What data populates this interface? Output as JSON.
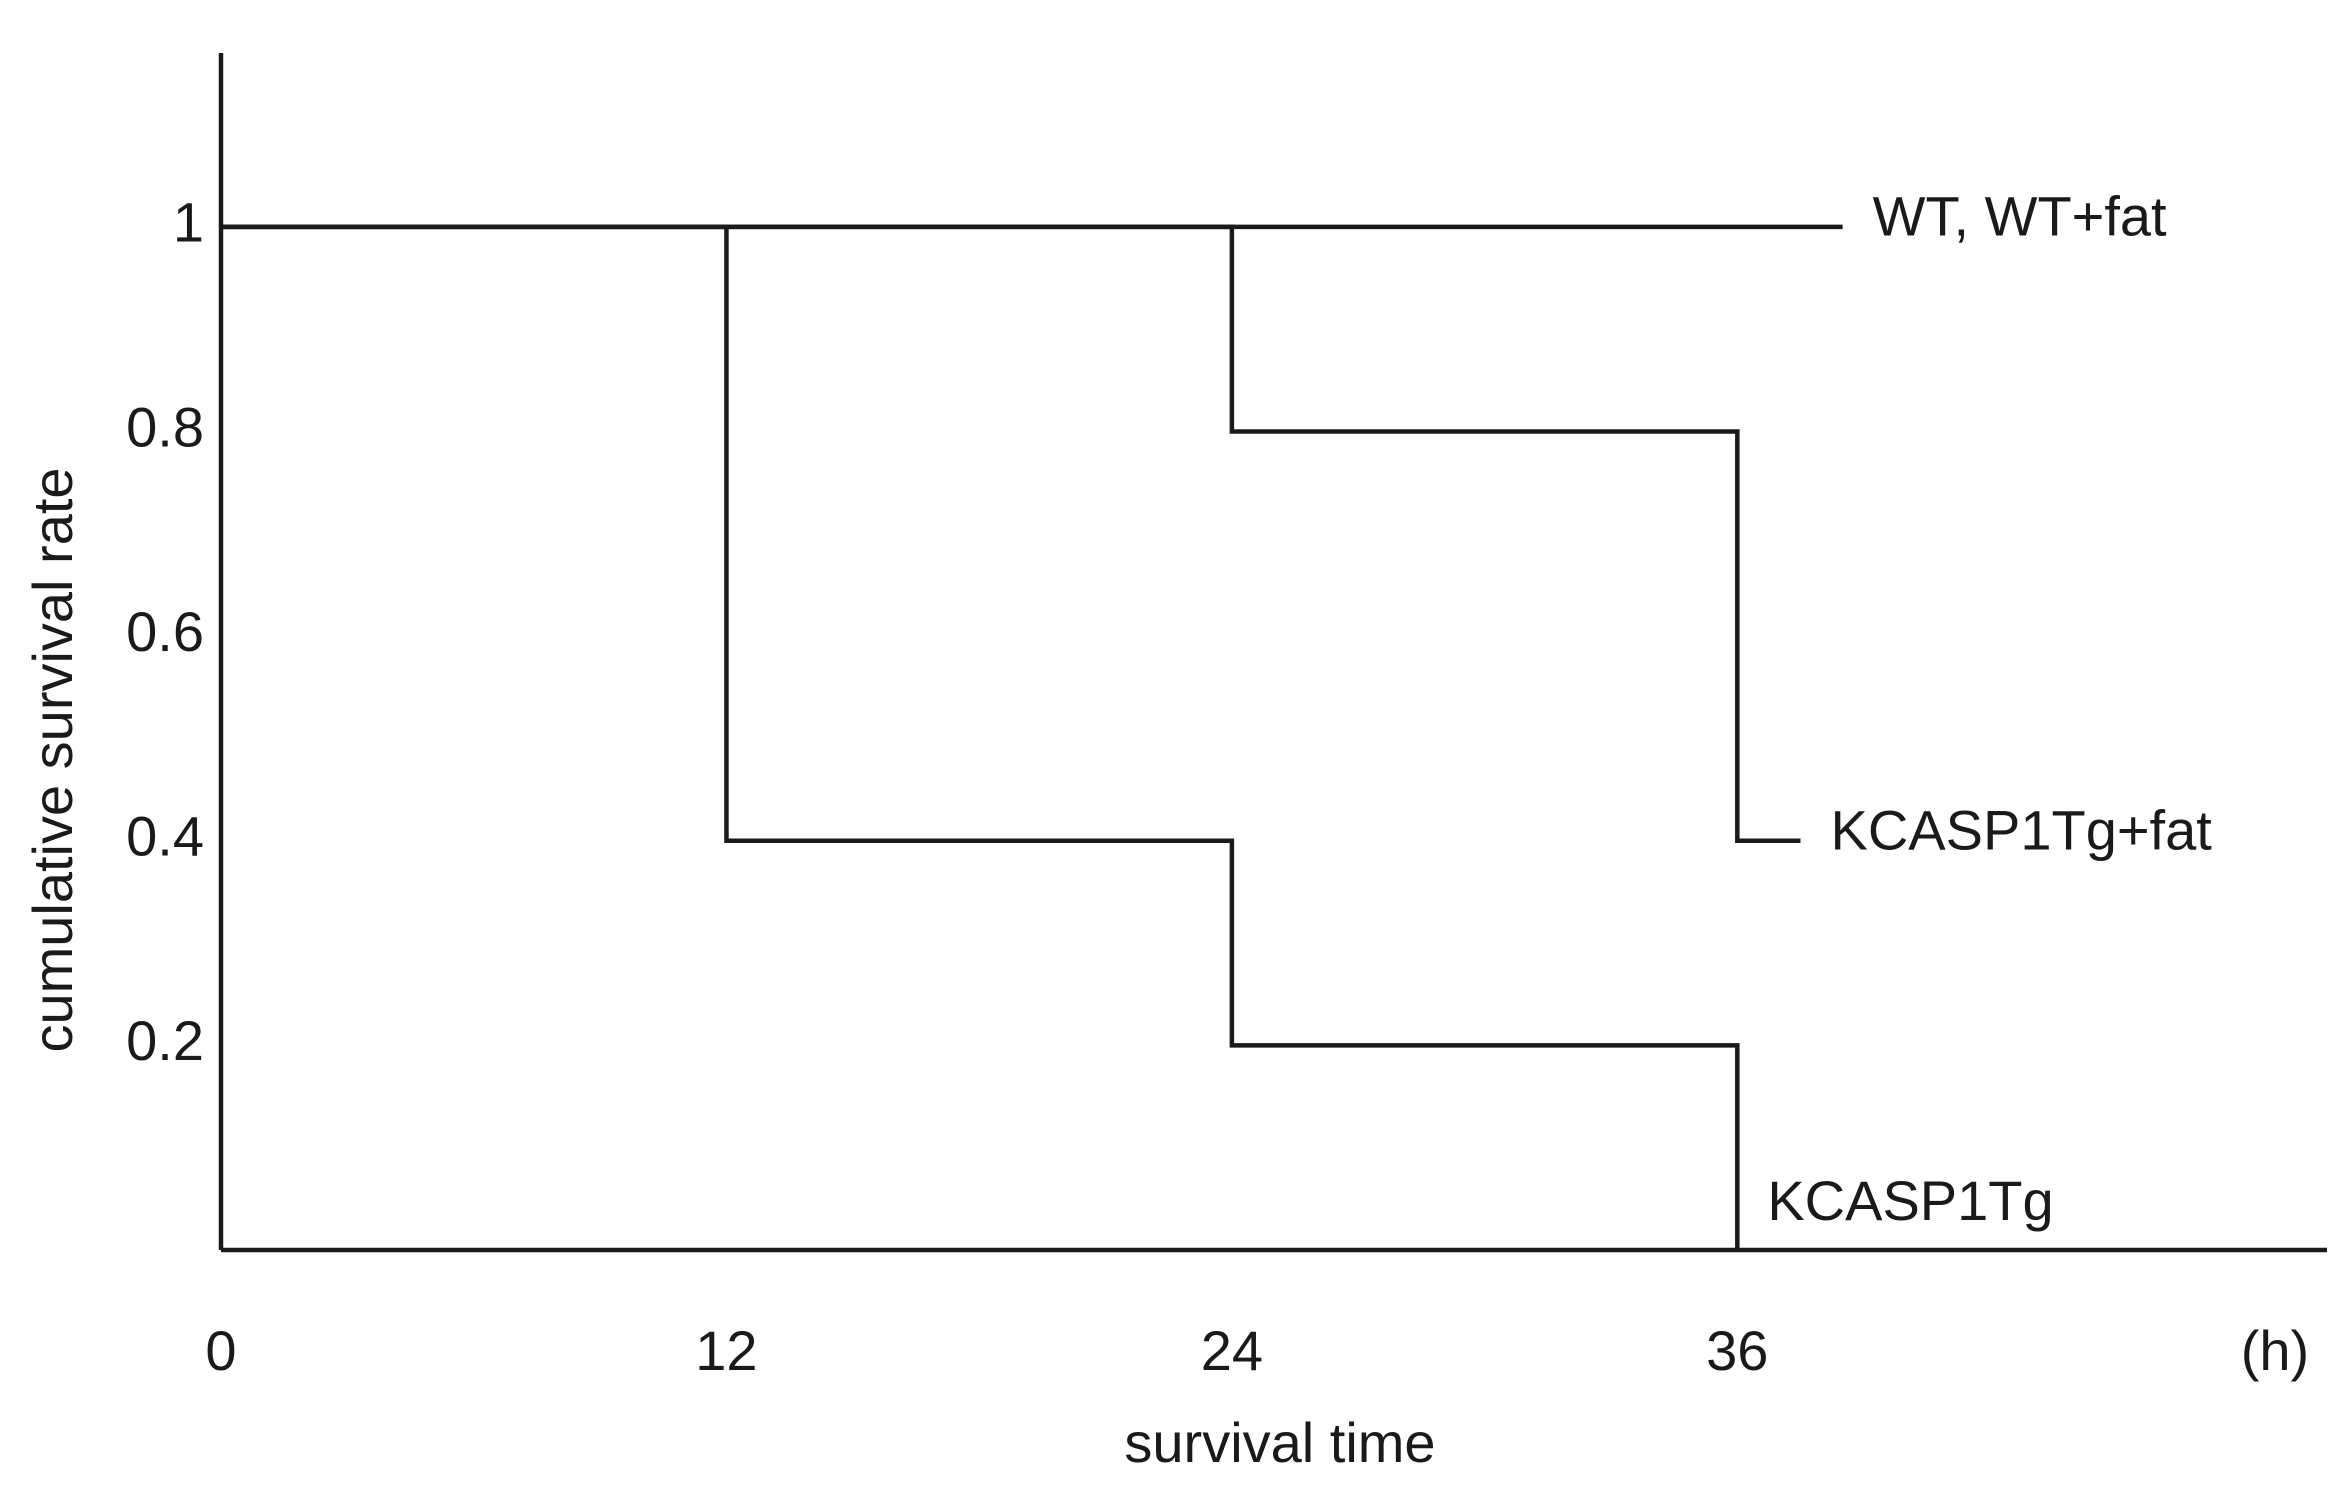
{
  "chart_data": {
    "type": "step",
    "x_label": "survival time",
    "x_unit": "(h)",
    "y_label": "cumulative survival rate",
    "xlim": [
      0,
      50
    ],
    "xticks": [
      0,
      12,
      24,
      36
    ],
    "ylim": [
      0,
      1.17
    ],
    "yticks": [
      0.2,
      0.4,
      0.6,
      0.8,
      1
    ],
    "grid": false,
    "series": [
      {
        "name": "WT, WT+fat",
        "color": "#1a1a1a",
        "x": [
          0,
          38.5
        ],
        "values": [
          1,
          1
        ]
      },
      {
        "name": "KCASP1Tg+fat",
        "color": "#1a1a1a",
        "x": [
          0,
          24,
          36,
          37.5
        ],
        "values": [
          1,
          0.8,
          0.4,
          0.4
        ]
      },
      {
        "name": "KCASP1Tg",
        "color": "#1a1a1a",
        "x": [
          0,
          12,
          24,
          36
        ],
        "values": [
          1,
          0.4,
          0.2,
          0
        ]
      }
    ]
  }
}
